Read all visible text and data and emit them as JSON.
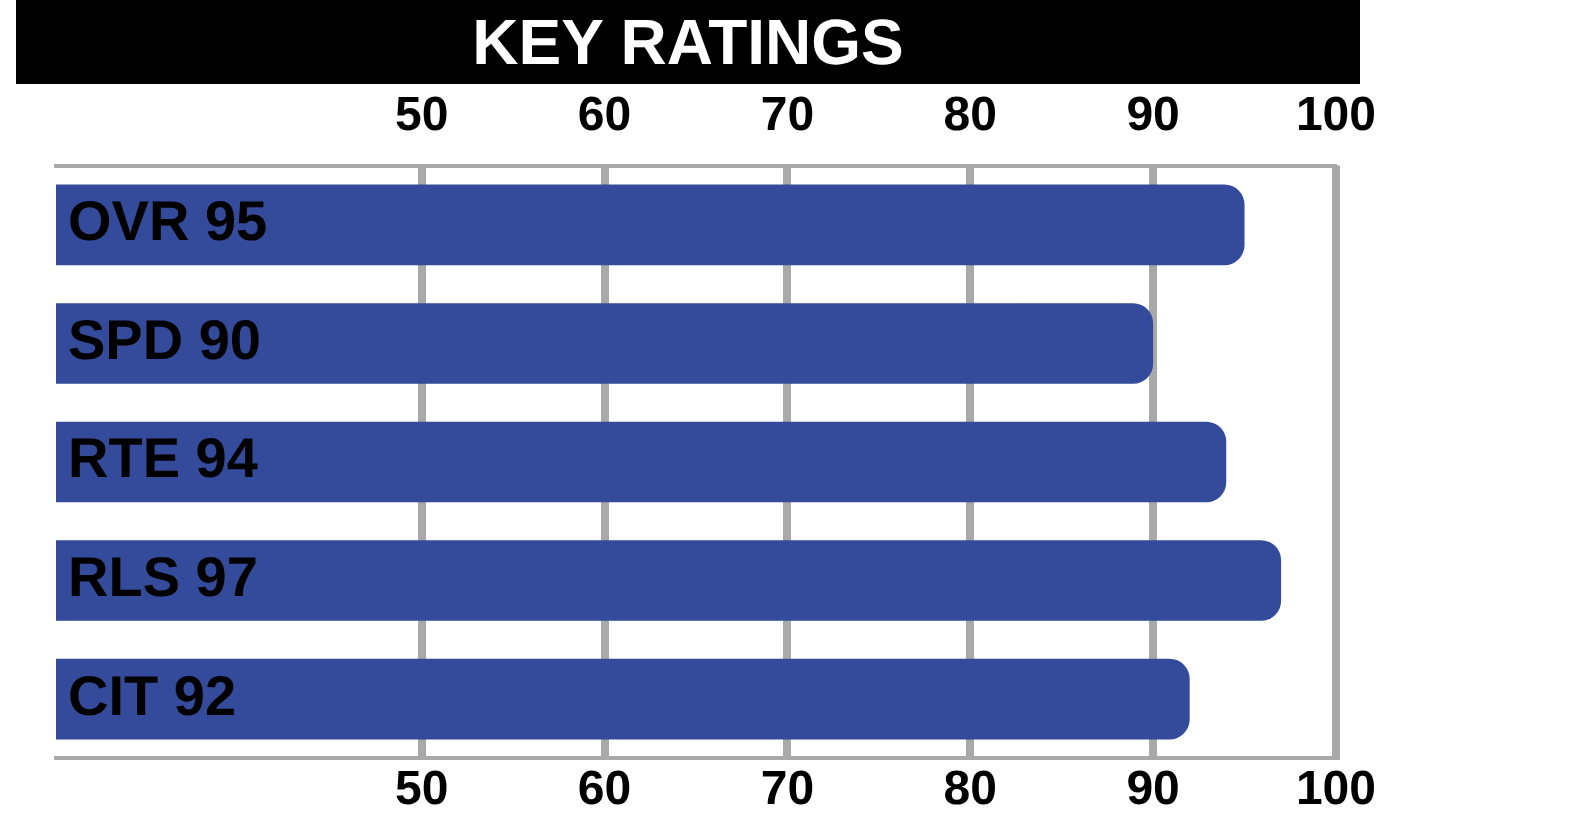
{
  "chart_data": {
    "type": "bar",
    "orientation": "horizontal",
    "title": "KEY RATINGS",
    "categories": [
      "OVR 95",
      "SPD 90",
      "RTE 94",
      "RLS 97",
      "CIT 92"
    ],
    "values": [
      95,
      90,
      94,
      97,
      92
    ],
    "color": "#344a9a",
    "xlim": [
      30,
      100
    ],
    "xticks": [
      50,
      60,
      70,
      80,
      90,
      100
    ],
    "x2lim": [
      30,
      100
    ],
    "x2ticks": [
      50,
      60,
      70,
      80,
      90,
      100
    ],
    "grid": "x",
    "legend": false
  }
}
